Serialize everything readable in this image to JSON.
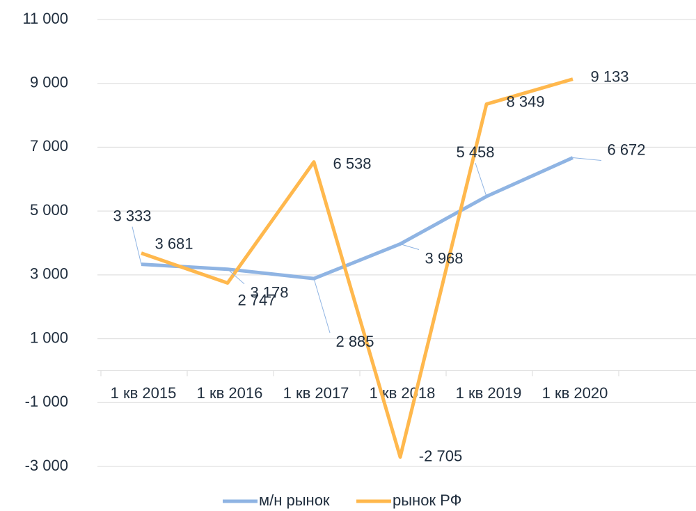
{
  "chart_data": {
    "type": "line",
    "categories": [
      "1 кв 2015",
      "1 кв 2016",
      "1 кв 2017",
      "1 кв 2018",
      "1 кв 2019",
      "1 кв 2020",
      null
    ],
    "series": [
      {
        "name": "м/н рынок",
        "color": "#8fb4e3",
        "values": [
          3333,
          3178,
          2885,
          3968,
          5458,
          6672,
          null
        ],
        "value_labels": [
          "3 333",
          "3 178",
          "2 885",
          "3 968",
          "5 458",
          "6 672",
          null
        ]
      },
      {
        "name": "рынок РФ",
        "color": "#ffb84d",
        "values": [
          3681,
          2747,
          6538,
          -2705,
          8349,
          9133,
          null
        ],
        "value_labels": [
          "3 681",
          "2 747",
          "6 538",
          "-2 705",
          "8 349",
          "9 133",
          null
        ]
      }
    ],
    "ylim": [
      -3000,
      11000
    ],
    "yticks": [
      {
        "value": -3000,
        "label": "-3 000"
      },
      {
        "value": -1000,
        "label": "-1 000"
      },
      {
        "value": 1000,
        "label": "1 000"
      },
      {
        "value": 3000,
        "label": "3 000"
      },
      {
        "value": 5000,
        "label": "5 000"
      },
      {
        "value": 7000,
        "label": "7 000"
      },
      {
        "value": 9000,
        "label": "9 000"
      },
      {
        "value": 11000,
        "label": "11 000"
      }
    ],
    "grid": true,
    "legend": "bottom"
  }
}
